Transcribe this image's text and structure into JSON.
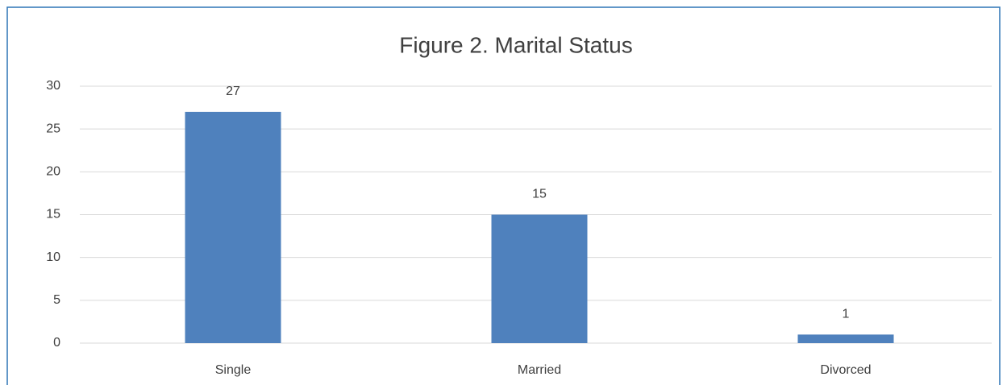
{
  "chart_data": {
    "type": "bar",
    "title": "Figure 2. Marital Status",
    "categories": [
      "Single",
      "Married",
      "Divorced"
    ],
    "values": [
      27,
      15,
      1
    ],
    "color": "#4f81bd",
    "ylim": [
      0,
      30
    ],
    "yticks": [
      0,
      5,
      10,
      15,
      20,
      25,
      30
    ],
    "grid": true
  }
}
